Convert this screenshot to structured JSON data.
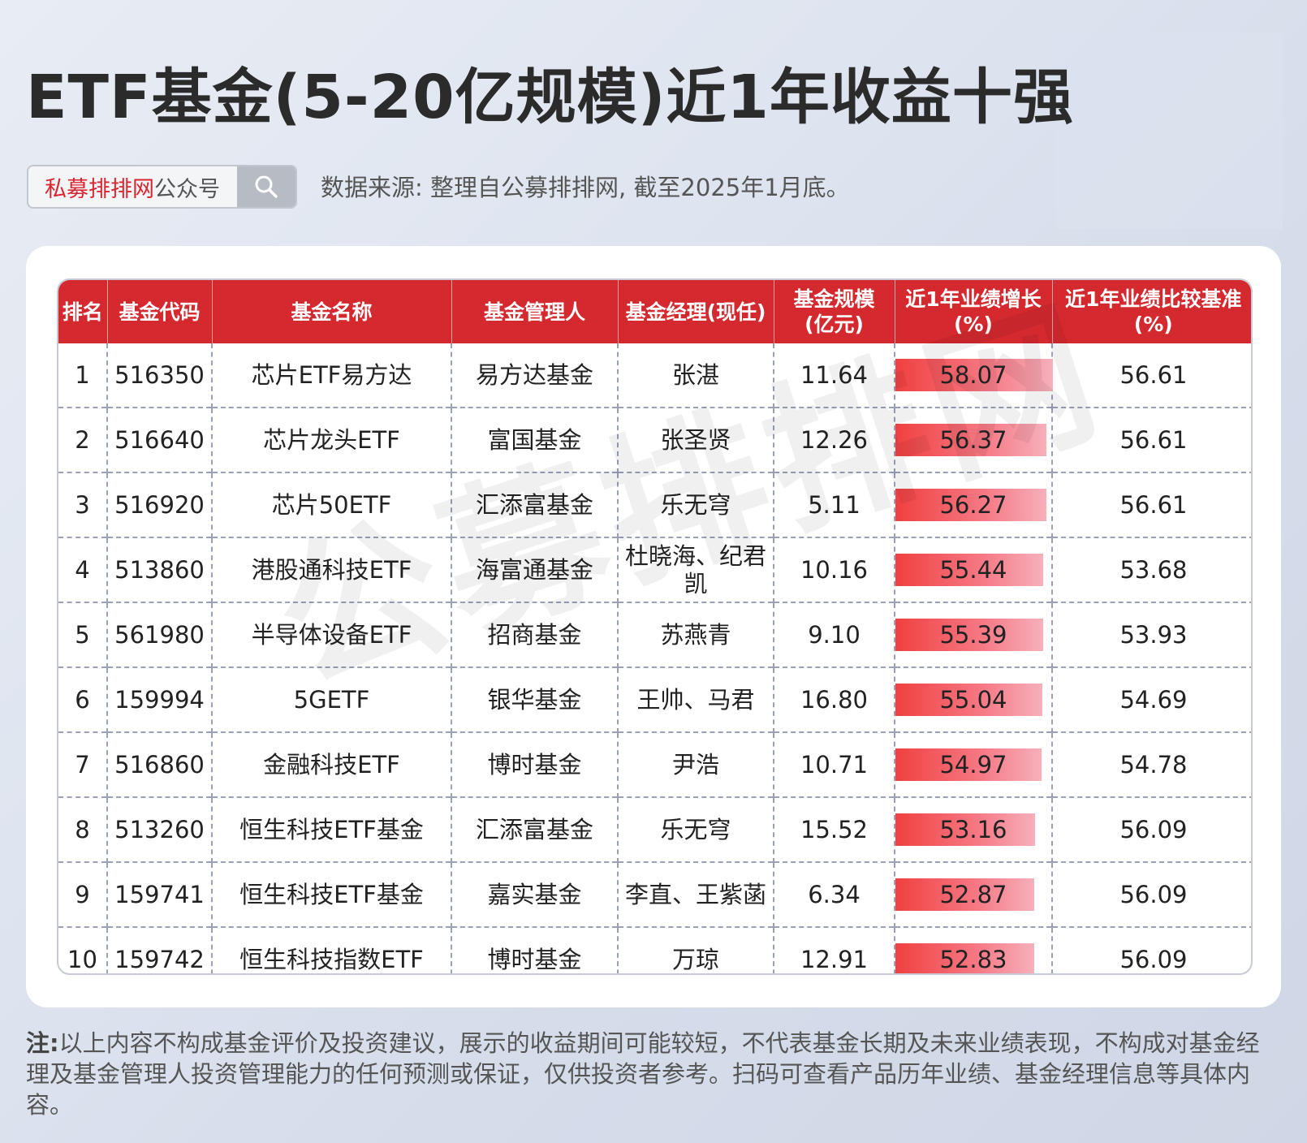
{
  "title": "ETF基金(5-20亿规模)近1年收益十强",
  "search": {
    "brand": "私募排排网",
    "suffix": "公众号",
    "icon": "search-icon"
  },
  "source": "数据来源: 整理自公募排排网, 截至2025年1月底。",
  "watermark": "公募排排网",
  "note": {
    "label": "注:",
    "text": "以上内容不构成基金评价及投资建议，展示的收益期间可能较短，不代表基金长期及未来业绩表现，不构成对基金经理及基金管理人投资管理能力的任何预测或保证，仅供投资者参考。扫码可查看产品历年业绩、基金经理信息等具体内容。"
  },
  "colors": {
    "header_red": "#d42a2f",
    "bar_start": "#f04040",
    "bar_end": "#f6b0bc"
  },
  "chart_data": {
    "type": "table",
    "columns": [
      "排名",
      "基金代码",
      "基金名称",
      "基金管理人",
      "基金经理(现任)",
      "基金规模\n(亿元)",
      "近1年业绩增长\n(%)",
      "近1年业绩比较基准\n(%)"
    ],
    "rows": [
      {
        "rank": "1",
        "code": "516350",
        "name": "芯片ETF易方达",
        "company": "易方达基金",
        "manager": "张湛",
        "scale": "11.64",
        "perf": 58.07,
        "bench": "56.61"
      },
      {
        "rank": "2",
        "code": "516640",
        "name": "芯片龙头ETF",
        "company": "富国基金",
        "manager": "张圣贤",
        "scale": "12.26",
        "perf": 56.37,
        "bench": "56.61"
      },
      {
        "rank": "3",
        "code": "516920",
        "name": "芯片50ETF",
        "company": "汇添富基金",
        "manager": "乐无穹",
        "scale": "5.11",
        "perf": 56.27,
        "bench": "56.61"
      },
      {
        "rank": "4",
        "code": "513860",
        "name": "港股通科技ETF",
        "company": "海富通基金",
        "manager": "杜晓海、纪君凯",
        "scale": "10.16",
        "perf": 55.44,
        "bench": "53.68"
      },
      {
        "rank": "5",
        "code": "561980",
        "name": "半导体设备ETF",
        "company": "招商基金",
        "manager": "苏燕青",
        "scale": "9.10",
        "perf": 55.39,
        "bench": "53.93"
      },
      {
        "rank": "6",
        "code": "159994",
        "name": "5GETF",
        "company": "银华基金",
        "manager": "王帅、马君",
        "scale": "16.80",
        "perf": 55.04,
        "bench": "54.69"
      },
      {
        "rank": "7",
        "code": "516860",
        "name": "金融科技ETF",
        "company": "博时基金",
        "manager": "尹浩",
        "scale": "10.71",
        "perf": 54.97,
        "bench": "54.78"
      },
      {
        "rank": "8",
        "code": "513260",
        "name": "恒生科技ETF基金",
        "company": "汇添富基金",
        "manager": "乐无穹",
        "scale": "15.52",
        "perf": 53.16,
        "bench": "56.09"
      },
      {
        "rank": "9",
        "code": "159741",
        "name": "恒生科技ETF基金",
        "company": "嘉实基金",
        "manager": "李直、王紫菡",
        "scale": "6.34",
        "perf": 52.87,
        "bench": "56.09"
      },
      {
        "rank": "10",
        "code": "159742",
        "name": "恒生科技指数ETF",
        "company": "博时基金",
        "manager": "万琼",
        "scale": "12.91",
        "perf": 52.83,
        "bench": "56.09"
      }
    ]
  }
}
